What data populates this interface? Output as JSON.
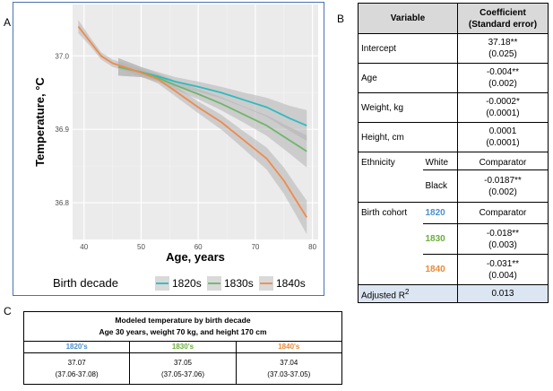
{
  "panels": {
    "a": "A",
    "b": "B",
    "c": "C"
  },
  "chart_data": {
    "type": "line",
    "xlabel": "Age, years",
    "ylabel": "Temperature, °C",
    "xlim": [
      38,
      81
    ],
    "ylim": [
      36.75,
      37.07
    ],
    "x_ticks": [
      40,
      50,
      60,
      70,
      80
    ],
    "y_ticks": [
      36.8,
      36.9,
      37.0
    ],
    "grid": true,
    "legend": {
      "title": "Birth decade",
      "placement": "bottom"
    },
    "series": [
      {
        "name": "1820s",
        "color": "#2bbcc0",
        "x": [
          46,
          50,
          53,
          56,
          60,
          64,
          68,
          72,
          76,
          79
        ],
        "y": [
          36.985,
          36.978,
          36.972,
          36.965,
          36.958,
          36.95,
          36.94,
          36.93,
          36.915,
          36.905
        ],
        "band": [
          0.012,
          0.007,
          0.006,
          0.006,
          0.007,
          0.008,
          0.01,
          0.013,
          0.017,
          0.021
        ]
      },
      {
        "name": "1830s",
        "color": "#6fb56b",
        "x": [
          46,
          50,
          53,
          56,
          60,
          64,
          68,
          72,
          76,
          79
        ],
        "y": [
          36.985,
          36.978,
          36.97,
          36.96,
          36.948,
          36.935,
          36.92,
          36.905,
          36.885,
          36.87
        ],
        "band": [
          0.012,
          0.007,
          0.006,
          0.006,
          0.007,
          0.009,
          0.011,
          0.014,
          0.018,
          0.022
        ]
      },
      {
        "name": "1840s",
        "color": "#f08a4b",
        "x": [
          39,
          41,
          43,
          45,
          47,
          50,
          53,
          56,
          60,
          64,
          68,
          72,
          75,
          77,
          79
        ],
        "y": [
          37.04,
          37.02,
          37.0,
          36.99,
          36.985,
          36.977,
          36.968,
          36.952,
          36.93,
          36.91,
          36.885,
          36.86,
          36.83,
          36.805,
          36.78
        ],
        "band": [
          0.009,
          0.006,
          0.005,
          0.005,
          0.005,
          0.005,
          0.006,
          0.007,
          0.008,
          0.01,
          0.012,
          0.015,
          0.018,
          0.02,
          0.023
        ]
      }
    ]
  },
  "regression_table": {
    "header_variable": "Variable",
    "header_coef_line1": "Coefficient",
    "header_coef_line2": "(Standard error)",
    "rows": [
      {
        "label": "Intercept",
        "coef": "37.18**",
        "se": "(0.025)"
      },
      {
        "label": "Age",
        "coef": "-0.004**",
        "se": "(0.002)"
      },
      {
        "label": "Weight, kg",
        "coef": "-0.0002*",
        "se": "(0.0001)"
      },
      {
        "label": "Height, cm",
        "coef": "0.0001",
        "se": "(0.0001)"
      }
    ],
    "ethnicity": {
      "label": "Ethnicity",
      "white": "White",
      "white_value": "Comparator",
      "black": "Black",
      "black_coef": "-0.0187**",
      "black_se": "(0.002)"
    },
    "birth_cohort": {
      "label": "Birth cohort",
      "c1820": "1820",
      "c1820_value": "Comparator",
      "c1830": "1830",
      "c1830_coef": "-0.018**",
      "c1830_se": "(0.003)",
      "c1840": "1840",
      "c1840_coef": "-0.031**",
      "c1840_se": "(0.004)"
    },
    "adj_r2_label": "Adjusted R",
    "adj_r2_sup": "2",
    "adj_r2_value": "0.013"
  },
  "temp_table": {
    "title_line1": "Modeled temperature by birth decade",
    "title_line2": "Age 30 years, weight 70 kg, and height 170 cm",
    "columns": [
      {
        "label": "1820's",
        "value": "37.07",
        "ci": "(37.06-37.08)"
      },
      {
        "label": "1830's",
        "value": "37.05",
        "ci": "(37.05-37.06)"
      },
      {
        "label": "1840's",
        "value": "37.04",
        "ci": "(37.03-37.05)"
      }
    ]
  }
}
